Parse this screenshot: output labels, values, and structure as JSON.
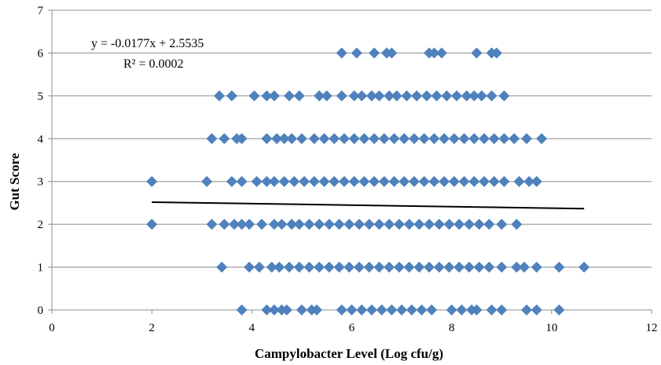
{
  "chart_data": {
    "type": "scatter",
    "title": "",
    "xlabel": "Campylobacter Level (Log cfu/g)",
    "ylabel": "Gut Score",
    "xlim": [
      0,
      12
    ],
    "ylim": [
      0,
      7
    ],
    "x_ticks": [
      "0",
      "2",
      "4",
      "6",
      "8",
      "10",
      "12"
    ],
    "y_ticks": [
      "0",
      "1",
      "2",
      "3",
      "4",
      "5",
      "6",
      "7"
    ],
    "grid": "horizontal",
    "marker": "diamond",
    "marker_color": "#4F81BD",
    "trendline": {
      "slope": -0.0177,
      "intercept": 2.5535,
      "x_range": [
        2.0,
        10.65
      ],
      "color": "#000000",
      "equation": "y = -0.0177x + 2.5535",
      "r_squared": "R² = 0.0002"
    },
    "series": [
      {
        "points": [
          {
            "x": 3.8,
            "y": 0
          },
          {
            "x": 4.3,
            "y": 0
          },
          {
            "x": 4.45,
            "y": 0
          },
          {
            "x": 4.6,
            "y": 0
          },
          {
            "x": 4.7,
            "y": 0
          },
          {
            "x": 5.0,
            "y": 0
          },
          {
            "x": 5.2,
            "y": 0
          },
          {
            "x": 5.3,
            "y": 0
          },
          {
            "x": 5.8,
            "y": 0
          },
          {
            "x": 6.0,
            "y": 0
          },
          {
            "x": 6.2,
            "y": 0
          },
          {
            "x": 6.4,
            "y": 0
          },
          {
            "x": 6.6,
            "y": 0
          },
          {
            "x": 6.8,
            "y": 0
          },
          {
            "x": 7.0,
            "y": 0
          },
          {
            "x": 7.2,
            "y": 0
          },
          {
            "x": 7.4,
            "y": 0
          },
          {
            "x": 7.6,
            "y": 0
          },
          {
            "x": 8.0,
            "y": 0
          },
          {
            "x": 8.2,
            "y": 0
          },
          {
            "x": 8.4,
            "y": 0
          },
          {
            "x": 8.5,
            "y": 0
          },
          {
            "x": 8.8,
            "y": 0
          },
          {
            "x": 9.0,
            "y": 0
          },
          {
            "x": 9.5,
            "y": 0
          },
          {
            "x": 9.7,
            "y": 0
          },
          {
            "x": 10.15,
            "y": 0
          },
          {
            "x": 3.4,
            "y": 1
          },
          {
            "x": 3.95,
            "y": 1
          },
          {
            "x": 4.15,
            "y": 1
          },
          {
            "x": 4.4,
            "y": 1
          },
          {
            "x": 4.55,
            "y": 1
          },
          {
            "x": 4.75,
            "y": 1
          },
          {
            "x": 4.95,
            "y": 1
          },
          {
            "x": 5.15,
            "y": 1
          },
          {
            "x": 5.35,
            "y": 1
          },
          {
            "x": 5.55,
            "y": 1
          },
          {
            "x": 5.75,
            "y": 1
          },
          {
            "x": 5.95,
            "y": 1
          },
          {
            "x": 6.15,
            "y": 1
          },
          {
            "x": 6.35,
            "y": 1
          },
          {
            "x": 6.55,
            "y": 1
          },
          {
            "x": 6.75,
            "y": 1
          },
          {
            "x": 6.95,
            "y": 1
          },
          {
            "x": 7.15,
            "y": 1
          },
          {
            "x": 7.35,
            "y": 1
          },
          {
            "x": 7.55,
            "y": 1
          },
          {
            "x": 7.75,
            "y": 1
          },
          {
            "x": 7.95,
            "y": 1
          },
          {
            "x": 8.15,
            "y": 1
          },
          {
            "x": 8.35,
            "y": 1
          },
          {
            "x": 8.55,
            "y": 1
          },
          {
            "x": 8.75,
            "y": 1
          },
          {
            "x": 9.0,
            "y": 1
          },
          {
            "x": 9.3,
            "y": 1
          },
          {
            "x": 9.45,
            "y": 1
          },
          {
            "x": 9.7,
            "y": 1
          },
          {
            "x": 10.15,
            "y": 1
          },
          {
            "x": 10.65,
            "y": 1
          },
          {
            "x": 2.0,
            "y": 2
          },
          {
            "x": 3.2,
            "y": 2
          },
          {
            "x": 3.45,
            "y": 2
          },
          {
            "x": 3.65,
            "y": 2
          },
          {
            "x": 3.8,
            "y": 2
          },
          {
            "x": 3.95,
            "y": 2
          },
          {
            "x": 4.2,
            "y": 2
          },
          {
            "x": 4.45,
            "y": 2
          },
          {
            "x": 4.6,
            "y": 2
          },
          {
            "x": 4.8,
            "y": 2
          },
          {
            "x": 4.95,
            "y": 2
          },
          {
            "x": 5.15,
            "y": 2
          },
          {
            "x": 5.35,
            "y": 2
          },
          {
            "x": 5.55,
            "y": 2
          },
          {
            "x": 5.75,
            "y": 2
          },
          {
            "x": 5.95,
            "y": 2
          },
          {
            "x": 6.15,
            "y": 2
          },
          {
            "x": 6.35,
            "y": 2
          },
          {
            "x": 6.55,
            "y": 2
          },
          {
            "x": 6.75,
            "y": 2
          },
          {
            "x": 6.95,
            "y": 2
          },
          {
            "x": 7.15,
            "y": 2
          },
          {
            "x": 7.35,
            "y": 2
          },
          {
            "x": 7.55,
            "y": 2
          },
          {
            "x": 7.75,
            "y": 2
          },
          {
            "x": 7.95,
            "y": 2
          },
          {
            "x": 8.15,
            "y": 2
          },
          {
            "x": 8.35,
            "y": 2
          },
          {
            "x": 8.55,
            "y": 2
          },
          {
            "x": 8.75,
            "y": 2
          },
          {
            "x": 9.0,
            "y": 2
          },
          {
            "x": 9.3,
            "y": 2
          },
          {
            "x": 2.0,
            "y": 3
          },
          {
            "x": 3.1,
            "y": 3
          },
          {
            "x": 3.6,
            "y": 3
          },
          {
            "x": 3.8,
            "y": 3
          },
          {
            "x": 4.1,
            "y": 3
          },
          {
            "x": 4.3,
            "y": 3
          },
          {
            "x": 4.45,
            "y": 3
          },
          {
            "x": 4.65,
            "y": 3
          },
          {
            "x": 4.85,
            "y": 3
          },
          {
            "x": 5.05,
            "y": 3
          },
          {
            "x": 5.25,
            "y": 3
          },
          {
            "x": 5.45,
            "y": 3
          },
          {
            "x": 5.65,
            "y": 3
          },
          {
            "x": 5.85,
            "y": 3
          },
          {
            "x": 6.05,
            "y": 3
          },
          {
            "x": 6.25,
            "y": 3
          },
          {
            "x": 6.45,
            "y": 3
          },
          {
            "x": 6.65,
            "y": 3
          },
          {
            "x": 6.85,
            "y": 3
          },
          {
            "x": 7.05,
            "y": 3
          },
          {
            "x": 7.25,
            "y": 3
          },
          {
            "x": 7.45,
            "y": 3
          },
          {
            "x": 7.65,
            "y": 3
          },
          {
            "x": 7.85,
            "y": 3
          },
          {
            "x": 8.05,
            "y": 3
          },
          {
            "x": 8.25,
            "y": 3
          },
          {
            "x": 8.45,
            "y": 3
          },
          {
            "x": 8.65,
            "y": 3
          },
          {
            "x": 8.85,
            "y": 3
          },
          {
            "x": 9.05,
            "y": 3
          },
          {
            "x": 9.35,
            "y": 3
          },
          {
            "x": 9.55,
            "y": 3
          },
          {
            "x": 9.7,
            "y": 3
          },
          {
            "x": 3.2,
            "y": 4
          },
          {
            "x": 3.45,
            "y": 4
          },
          {
            "x": 3.7,
            "y": 4
          },
          {
            "x": 3.8,
            "y": 4
          },
          {
            "x": 4.3,
            "y": 4
          },
          {
            "x": 4.5,
            "y": 4
          },
          {
            "x": 4.65,
            "y": 4
          },
          {
            "x": 4.8,
            "y": 4
          },
          {
            "x": 5.0,
            "y": 4
          },
          {
            "x": 5.25,
            "y": 4
          },
          {
            "x": 5.45,
            "y": 4
          },
          {
            "x": 5.65,
            "y": 4
          },
          {
            "x": 5.85,
            "y": 4
          },
          {
            "x": 6.05,
            "y": 4
          },
          {
            "x": 6.25,
            "y": 4
          },
          {
            "x": 6.45,
            "y": 4
          },
          {
            "x": 6.65,
            "y": 4
          },
          {
            "x": 6.85,
            "y": 4
          },
          {
            "x": 7.05,
            "y": 4
          },
          {
            "x": 7.25,
            "y": 4
          },
          {
            "x": 7.45,
            "y": 4
          },
          {
            "x": 7.65,
            "y": 4
          },
          {
            "x": 7.85,
            "y": 4
          },
          {
            "x": 8.05,
            "y": 4
          },
          {
            "x": 8.25,
            "y": 4
          },
          {
            "x": 8.45,
            "y": 4
          },
          {
            "x": 8.65,
            "y": 4
          },
          {
            "x": 8.85,
            "y": 4
          },
          {
            "x": 9.05,
            "y": 4
          },
          {
            "x": 9.25,
            "y": 4
          },
          {
            "x": 9.5,
            "y": 4
          },
          {
            "x": 9.8,
            "y": 4
          },
          {
            "x": 3.35,
            "y": 5
          },
          {
            "x": 3.6,
            "y": 5
          },
          {
            "x": 4.05,
            "y": 5
          },
          {
            "x": 4.3,
            "y": 5
          },
          {
            "x": 4.45,
            "y": 5
          },
          {
            "x": 4.75,
            "y": 5
          },
          {
            "x": 4.95,
            "y": 5
          },
          {
            "x": 5.35,
            "y": 5
          },
          {
            "x": 5.5,
            "y": 5
          },
          {
            "x": 5.8,
            "y": 5
          },
          {
            "x": 6.05,
            "y": 5
          },
          {
            "x": 6.2,
            "y": 5
          },
          {
            "x": 6.4,
            "y": 5
          },
          {
            "x": 6.55,
            "y": 5
          },
          {
            "x": 6.75,
            "y": 5
          },
          {
            "x": 6.9,
            "y": 5
          },
          {
            "x": 7.1,
            "y": 5
          },
          {
            "x": 7.3,
            "y": 5
          },
          {
            "x": 7.5,
            "y": 5
          },
          {
            "x": 7.7,
            "y": 5
          },
          {
            "x": 7.9,
            "y": 5
          },
          {
            "x": 8.1,
            "y": 5
          },
          {
            "x": 8.3,
            "y": 5
          },
          {
            "x": 8.45,
            "y": 5
          },
          {
            "x": 8.6,
            "y": 5
          },
          {
            "x": 8.8,
            "y": 5
          },
          {
            "x": 9.05,
            "y": 5
          },
          {
            "x": 5.8,
            "y": 6
          },
          {
            "x": 6.1,
            "y": 6
          },
          {
            "x": 6.45,
            "y": 6
          },
          {
            "x": 6.7,
            "y": 6
          },
          {
            "x": 6.8,
            "y": 6
          },
          {
            "x": 7.55,
            "y": 6
          },
          {
            "x": 7.65,
            "y": 6
          },
          {
            "x": 7.8,
            "y": 6
          },
          {
            "x": 8.5,
            "y": 6
          },
          {
            "x": 8.8,
            "y": 6
          },
          {
            "x": 8.9,
            "y": 6
          }
        ]
      }
    ]
  }
}
